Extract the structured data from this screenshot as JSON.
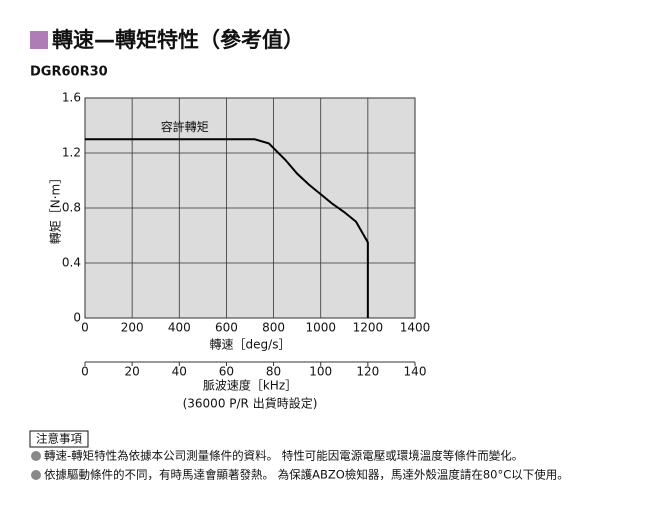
{
  "header": {
    "title": "轉速—轉矩特性（參考值）",
    "model": "DGR60R30"
  },
  "chart_data": {
    "type": "line",
    "x": [
      0,
      720,
      780,
      850,
      900,
      950,
      1000,
      1050,
      1100,
      1150,
      1200,
      1200
    ],
    "series": [
      {
        "name": "容許轉矩",
        "color": "#000000",
        "values": [
          1.3,
          1.3,
          1.27,
          1.15,
          1.05,
          0.97,
          0.9,
          0.83,
          0.77,
          0.7,
          0.55,
          0
        ]
      }
    ],
    "xlim": [
      0,
      1400
    ],
    "xticks": [
      0,
      200,
      400,
      600,
      800,
      1000,
      1200,
      1400
    ],
    "ylim": [
      0,
      1.6
    ],
    "yticks": [
      0,
      0.4,
      0.8,
      1.2,
      1.6
    ],
    "x2lim": [
      0,
      140
    ],
    "x2ticks": [
      0,
      20,
      40,
      60,
      80,
      100,
      120,
      140
    ],
    "xlabel": "轉速［deg/s］",
    "ylabel": "轉矩［N·m］",
    "x2label": "脈波速度［kHz］",
    "x2note": "(36000 P/R 出貨時設定)",
    "grid": true,
    "background": "#dcdcdc"
  },
  "notes": {
    "title": "注意事項",
    "items": [
      "轉速-轉矩特性為依據本公司測量條件的資料。 特性可能因電源電壓或環境溫度等條件而變化。",
      "依據驅動條件的不同，有時馬達會顯著發熱。 為保護ABZO檢知器，馬達外殼溫度請在80°C以下使用。"
    ]
  }
}
